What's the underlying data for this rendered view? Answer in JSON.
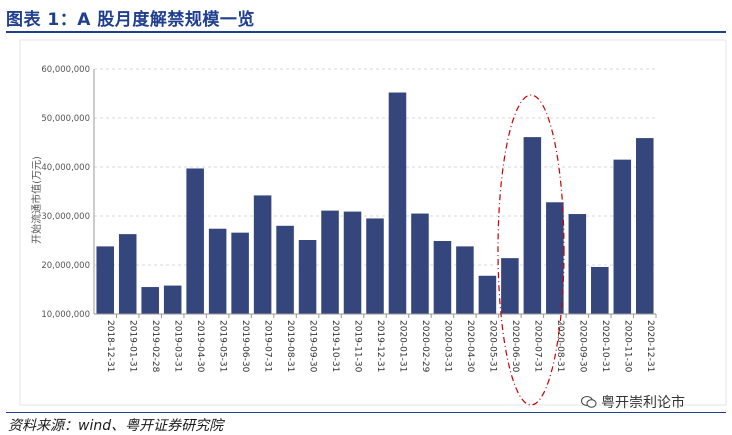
{
  "title": "图表 1：A 股月度解禁规模一览",
  "source": "资料来源：wind、粤开证券研究院",
  "watermark": "粤开崇利论市",
  "colors": {
    "bar": "#34467c",
    "title": "#1f3f8f",
    "ellipse": "#cc0000",
    "grid": "#d9d9d9"
  },
  "chart_data": {
    "type": "bar",
    "ylabel": "开始流通市值(万元)",
    "ylim": [
      10000000,
      60000000
    ],
    "yticks": [
      10000000,
      20000000,
      30000000,
      40000000,
      50000000,
      60000000
    ],
    "ytick_labels": [
      "10,000,000",
      "20,000,000",
      "30,000,000",
      "40,000,000",
      "50,000,000",
      "60,000,000"
    ],
    "grid": true,
    "categories": [
      "2018-12-31",
      "2019-01-31",
      "2019-02-28",
      "2019-03-31",
      "2019-04-30",
      "2019-05-31",
      "2019-06-30",
      "2019-07-31",
      "2019-08-31",
      "2019-09-30",
      "2019-10-31",
      "2019-11-30",
      "2019-12-31",
      "2020-01-31",
      "2020-02-29",
      "2020-03-31",
      "2020-04-30",
      "2020-05-31",
      "2020-06-30",
      "2020-07-31",
      "2020-08-31",
      "2020-09-30",
      "2020-10-31",
      "2020-11-30",
      "2020-12-31"
    ],
    "values": [
      23800000,
      26300000,
      15500000,
      15800000,
      39700000,
      27400000,
      26600000,
      34200000,
      28000000,
      25100000,
      31100000,
      30900000,
      29500000,
      55200000,
      30500000,
      24900000,
      23800000,
      17800000,
      21400000,
      46100000,
      32800000,
      30400000,
      19600000,
      41500000,
      45900000
    ],
    "highlight": [
      "2020-06-30",
      "2020-07-31",
      "2020-08-31"
    ]
  }
}
